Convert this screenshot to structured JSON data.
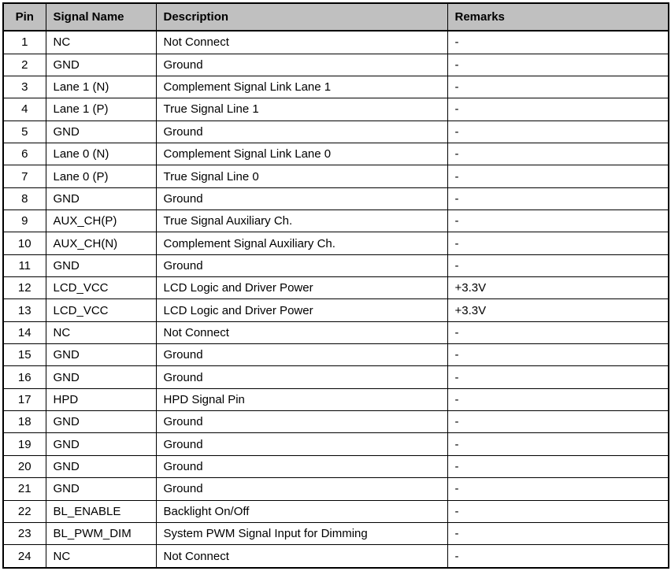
{
  "colors": {
    "header_bg": "#c0c0c0",
    "border": "#000000",
    "text": "#000000"
  },
  "table": {
    "columns": [
      {
        "label": "Pin"
      },
      {
        "label": "Signal Name"
      },
      {
        "label": "Description"
      },
      {
        "label": "Remarks"
      }
    ],
    "rows": [
      {
        "pin": "1",
        "signal": "NC",
        "description": "Not Connect",
        "remarks": "-"
      },
      {
        "pin": "2",
        "signal": "GND",
        "description": "Ground",
        "remarks": "-"
      },
      {
        "pin": "3",
        "signal": "Lane 1 (N)",
        "description": "Complement Signal Link Lane 1",
        "remarks": "-"
      },
      {
        "pin": "4",
        "signal": "Lane 1 (P)",
        "description": "True Signal Line 1",
        "remarks": "-"
      },
      {
        "pin": "5",
        "signal": "GND",
        "description": "Ground",
        "remarks": "-"
      },
      {
        "pin": "6",
        "signal": "Lane 0 (N)",
        "description": "Complement Signal Link Lane 0",
        "remarks": "-"
      },
      {
        "pin": "7",
        "signal": "Lane 0 (P)",
        "description": "True Signal Line 0",
        "remarks": "-"
      },
      {
        "pin": "8",
        "signal": "GND",
        "description": "Ground",
        "remarks": "-"
      },
      {
        "pin": "9",
        "signal": "AUX_CH(P)",
        "description": "True Signal Auxiliary Ch.",
        "remarks": "-"
      },
      {
        "pin": "10",
        "signal": "AUX_CH(N)",
        "description": "Complement Signal Auxiliary Ch.",
        "remarks": "-"
      },
      {
        "pin": "11",
        "signal": "GND",
        "description": "Ground",
        "remarks": "-"
      },
      {
        "pin": "12",
        "signal": "LCD_VCC",
        "description": "LCD Logic and Driver Power",
        "remarks": "+3.3V"
      },
      {
        "pin": "13",
        "signal": "LCD_VCC",
        "description": "LCD Logic and Driver Power",
        "remarks": "+3.3V"
      },
      {
        "pin": "14",
        "signal": "NC",
        "description": "Not Connect",
        "remarks": "-"
      },
      {
        "pin": "15",
        "signal": "GND",
        "description": "Ground",
        "remarks": "-"
      },
      {
        "pin": "16",
        "signal": "GND",
        "description": "Ground",
        "remarks": "-"
      },
      {
        "pin": "17",
        "signal": "HPD",
        "description": "HPD Signal Pin",
        "remarks": "-"
      },
      {
        "pin": "18",
        "signal": "GND",
        "description": "Ground",
        "remarks": "-"
      },
      {
        "pin": "19",
        "signal": "GND",
        "description": "Ground",
        "remarks": "-"
      },
      {
        "pin": "20",
        "signal": "GND",
        "description": "Ground",
        "remarks": "-"
      },
      {
        "pin": "21",
        "signal": "GND",
        "description": "Ground",
        "remarks": "-"
      },
      {
        "pin": "22",
        "signal": "BL_ENABLE",
        "description": "Backlight On/Off",
        "remarks": "-"
      },
      {
        "pin": "23",
        "signal": "BL_PWM_DIM",
        "description": "System PWM Signal Input for Dimming",
        "remarks": "-"
      },
      {
        "pin": "24",
        "signal": "NC",
        "description": "Not Connect",
        "remarks": "-"
      }
    ]
  }
}
